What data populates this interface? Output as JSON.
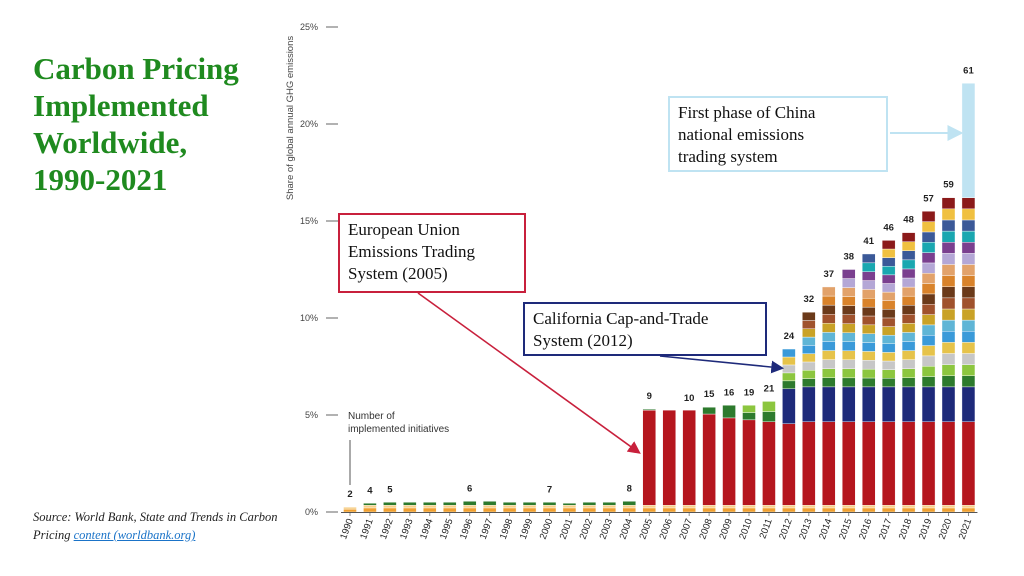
{
  "slide": {
    "title_lines": [
      "Carbon Pricing",
      "Implemented",
      "Worldwide,",
      "1990-2021"
    ],
    "source_text": "Source: World Bank, State and Trends in Carbon Pricing ",
    "source_link": "content (worldbank.org)"
  },
  "callouts": {
    "china": {
      "lines": [
        "First phase of China",
        "national emissions",
        "trading system"
      ]
    },
    "eu": {
      "lines": [
        "European Union",
        "Emissions Trading",
        "System (2005)"
      ]
    },
    "california": {
      "lines": [
        "California Cap-and-Trade",
        "System (2012)"
      ]
    }
  },
  "colors": {
    "title": "#1f8a1f",
    "eu_bar": "#b5161e",
    "china": "#bfe3f2",
    "california": "#1e2a7a",
    "callout_eu_border": "#c8203c",
    "link": "#1a73c8"
  },
  "chart_data": {
    "type": "bar",
    "stacked": true,
    "ylabel": "Share of global annual GHG emissions",
    "yticks": [
      "0%",
      "5%",
      "10%",
      "15%",
      "20%",
      "25%"
    ],
    "ylim": [
      0,
      25
    ],
    "note": "Number of implemented initiatives",
    "categories": [
      "1990",
      "1991",
      "1992",
      "1993",
      "1994",
      "1995",
      "1996",
      "1997",
      "1998",
      "1999",
      "2000",
      "2001",
      "2002",
      "2003",
      "2004",
      "2005",
      "2006",
      "2007",
      "2008",
      "2009",
      "2010",
      "2011",
      "2012",
      "2013",
      "2014",
      "2015",
      "2016",
      "2017",
      "2018",
      "2019",
      "2020",
      "2021"
    ],
    "totals": [
      0.25,
      0.45,
      0.5,
      0.5,
      0.5,
      0.5,
      0.55,
      0.55,
      0.5,
      0.5,
      0.5,
      0.45,
      0.5,
      0.5,
      0.55,
      5.3,
      5.2,
      5.2,
      5.4,
      5.5,
      5.5,
      5.7,
      8.4,
      10.3,
      11.6,
      12.5,
      13.3,
      14.0,
      14.4,
      15.5,
      16.2,
      22.1
    ],
    "initiative_counts": [
      "2",
      "4",
      "5",
      "",
      "",
      "",
      "6",
      "",
      "",
      "",
      "7",
      "",
      "",
      "",
      "8",
      "9",
      "",
      "10",
      "15",
      "16",
      "19",
      "21",
      "24",
      "32",
      "37",
      "38",
      "41",
      "46",
      "48",
      "57",
      "59",
      "61"
    ],
    "highlight_segments": {
      "eu_ets": {
        "from_year": "2005",
        "share": [
          4.9,
          4.9,
          4.9,
          4.7,
          4.5,
          4.4,
          4.3,
          4.2,
          4.3,
          4.3,
          4.3,
          4.3,
          4.3,
          4.3,
          4.3,
          4.3,
          4.3
        ]
      },
      "california": {
        "from_year": "2012",
        "share": [
          1.8,
          1.8,
          1.8,
          1.8,
          1.8,
          1.8,
          1.8,
          1.8,
          1.8,
          1.8
        ]
      },
      "china_ets": {
        "year": "2021",
        "share": 5.9
      }
    }
  }
}
